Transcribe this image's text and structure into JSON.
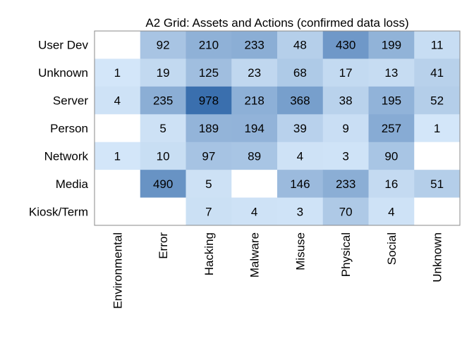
{
  "chart_data": {
    "type": "heatmap",
    "title": "A2 Grid: Assets and Actions (confirmed data loss)",
    "rows": [
      "User Dev",
      "Unknown",
      "Server",
      "Person",
      "Network",
      "Media",
      "Kiosk/Term"
    ],
    "columns": [
      "Environmental",
      "Error",
      "Hacking",
      "Malware",
      "Misuse",
      "Physical",
      "Social",
      "Unknown"
    ],
    "values": [
      [
        null,
        92,
        210,
        233,
        48,
        430,
        199,
        11
      ],
      [
        1,
        19,
        125,
        23,
        68,
        17,
        13,
        41
      ],
      [
        4,
        235,
        978,
        218,
        368,
        38,
        195,
        52
      ],
      [
        null,
        5,
        189,
        194,
        39,
        9,
        257,
        1
      ],
      [
        1,
        10,
        97,
        89,
        4,
        3,
        90,
        null
      ],
      [
        null,
        490,
        5,
        null,
        146,
        233,
        16,
        51
      ],
      [
        null,
        null,
        7,
        4,
        3,
        70,
        4,
        null
      ]
    ],
    "color_scale": {
      "low": "#d8eafb",
      "high": "#3a6fae",
      "max": 978
    },
    "grid": false,
    "legend": "none"
  }
}
